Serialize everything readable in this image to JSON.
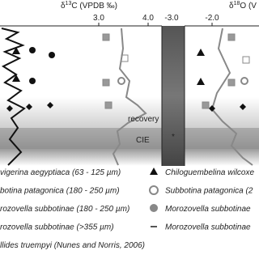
{
  "figure": {
    "axes": {
      "carbon": {
        "prefix": "δ",
        "sup": "13",
        "suffix": "C (VPDB ‰)",
        "ticks": [
          "3.0",
          "4.0"
        ]
      },
      "oxygen": {
        "prefix": "δ",
        "sup": "18",
        "suffix": "O (V",
        "ticks": [
          "-3.0",
          "-2.0"
        ]
      }
    },
    "annotations": {
      "recovery": "recovery",
      "cie": "CIE",
      "marker": "*"
    },
    "legend": [
      [
        "vigerina aegyptiaca (63 - 125 µm)",
        "Chiloguembelina wilcoxe"
      ],
      [
        "botina patagonica (180 - 250 µm)",
        "Subbotina patagonica (2"
      ],
      [
        "rozovella subbotinae (180 - 250 µm)",
        "Morozovella subbotinae"
      ],
      [
        "rozovella subbotinae (>355 µm)",
        "Morozovella subbotinae"
      ],
      [
        "llides truempyi (Nunes and Norris, 2006)"
      ]
    ]
  }
}
